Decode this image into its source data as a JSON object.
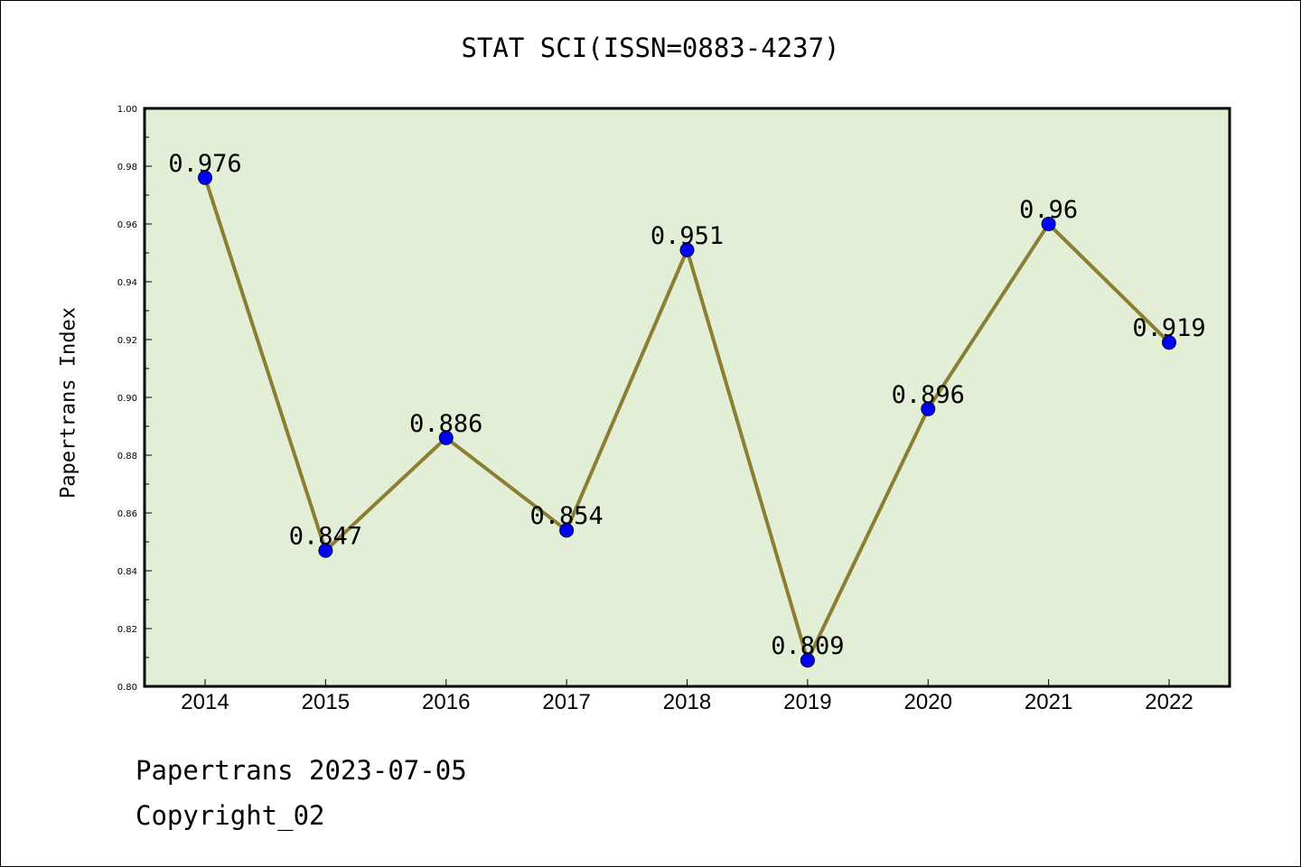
{
  "chart_data": {
    "type": "line",
    "title": "STAT SCI(ISSN=0883-4237)",
    "xlabel": "",
    "ylabel": "Papertrans Index",
    "categories": [
      "2014",
      "2015",
      "2016",
      "2017",
      "2018",
      "2019",
      "2020",
      "2021",
      "2022"
    ],
    "values": [
      0.976,
      0.847,
      0.886,
      0.854,
      0.951,
      0.809,
      0.896,
      0.96,
      0.919
    ],
    "data_labels": [
      "0.976",
      "0.847",
      "0.886",
      "0.854",
      "0.951",
      "0.809",
      "0.896",
      "0.96",
      "0.919"
    ],
    "ylim": [
      0.8,
      1.0
    ],
    "yticks": [
      "0.80",
      "0.82",
      "0.84",
      "0.86",
      "0.88",
      "0.90",
      "0.92",
      "0.94",
      "0.96",
      "0.98",
      "1.00"
    ],
    "grid": false,
    "legend": "none",
    "colors": {
      "line": "#8b7d32",
      "marker": "#0000ff",
      "plot_background": "#e2efd6",
      "axes": "#000000"
    }
  },
  "footer": {
    "date_text": "Papertrans 2023-07-05",
    "copyright_text": "Copyright_02"
  }
}
